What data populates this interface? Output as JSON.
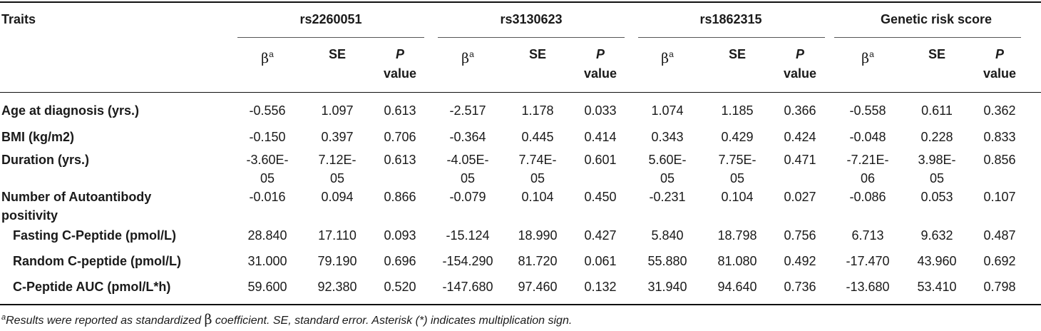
{
  "table": {
    "traits_header": "Traits",
    "groups": [
      "rs2260051",
      "rs3130623",
      "rs1862315",
      "Genetic risk score"
    ],
    "subheaders": {
      "beta": "β",
      "beta_sup": "a",
      "se": "SE",
      "p_line1": "P",
      "p_line2": "value"
    },
    "rows": [
      {
        "trait": "Age at diagnosis (yrs.)",
        "values": [
          [
            "-0.556"
          ],
          [
            "1.097"
          ],
          [
            "0.613"
          ],
          [
            "-2.517"
          ],
          [
            "1.178"
          ],
          [
            "0.033"
          ],
          [
            "1.074"
          ],
          [
            "1.185"
          ],
          [
            "0.366"
          ],
          [
            "-0.558"
          ],
          [
            "0.611"
          ],
          [
            "0.362"
          ]
        ]
      },
      {
        "trait": "BMI (kg/m2)",
        "values": [
          [
            "-0.150"
          ],
          [
            "0.397"
          ],
          [
            "0.706"
          ],
          [
            "-0.364"
          ],
          [
            "0.445"
          ],
          [
            "0.414"
          ],
          [
            "0.343"
          ],
          [
            "0.429"
          ],
          [
            "0.424"
          ],
          [
            "-0.048"
          ],
          [
            "0.228"
          ],
          [
            "0.833"
          ]
        ]
      },
      {
        "trait": "Duration (yrs.)",
        "values": [
          [
            "-3.60E-",
            "05"
          ],
          [
            "7.12E-",
            "05"
          ],
          [
            "0.613"
          ],
          [
            "-4.05E-",
            "05"
          ],
          [
            "7.74E-",
            "05"
          ],
          [
            "0.601"
          ],
          [
            "5.60E-",
            "05"
          ],
          [
            "7.75E-",
            "05"
          ],
          [
            "0.471"
          ],
          [
            "-7.21E-",
            "06"
          ],
          [
            "3.98E-",
            "05"
          ],
          [
            "0.856"
          ]
        ]
      },
      {
        "trait": "Number of Autoantibody",
        "trait_line2": "positivity",
        "values": [
          [
            "-0.016"
          ],
          [
            "0.094"
          ],
          [
            "0.866"
          ],
          [
            "-0.079"
          ],
          [
            "0.104"
          ],
          [
            "0.450"
          ],
          [
            "-0.231"
          ],
          [
            "0.104"
          ],
          [
            "0.027"
          ],
          [
            "-0.086"
          ],
          [
            "0.053"
          ],
          [
            "0.107"
          ]
        ]
      },
      {
        "trait": "Fasting C-Peptide (pmol/L)",
        "indent": true,
        "values": [
          [
            "28.840"
          ],
          [
            "17.110"
          ],
          [
            "0.093"
          ],
          [
            "-15.124"
          ],
          [
            "18.990"
          ],
          [
            "0.427"
          ],
          [
            "5.840"
          ],
          [
            "18.798"
          ],
          [
            "0.756"
          ],
          [
            "6.713"
          ],
          [
            "9.632"
          ],
          [
            "0.487"
          ]
        ]
      },
      {
        "trait": "Random C-peptide (pmol/L)",
        "indent": true,
        "values": [
          [
            "31.000"
          ],
          [
            "79.190"
          ],
          [
            "0.696"
          ],
          [
            "-154.290"
          ],
          [
            "81.720"
          ],
          [
            "0.061"
          ],
          [
            "55.880"
          ],
          [
            "81.080"
          ],
          [
            "0.492"
          ],
          [
            "-17.470"
          ],
          [
            "43.960"
          ],
          [
            "0.692"
          ]
        ]
      },
      {
        "trait": "C-Peptide AUC (pmol/L*h)",
        "indent": true,
        "values": [
          [
            "59.600"
          ],
          [
            "92.380"
          ],
          [
            "0.520"
          ],
          [
            "-147.680"
          ],
          [
            "97.460"
          ],
          [
            "0.132"
          ],
          [
            "31.940"
          ],
          [
            "94.640"
          ],
          [
            "0.736"
          ],
          [
            "-13.680"
          ],
          [
            "53.410"
          ],
          [
            "0.798"
          ]
        ]
      }
    ]
  },
  "footnote": {
    "sup": "a",
    "part1": "Results were reported as standardized ",
    "beta": "β",
    "part2": " coefficient. SE, standard error. Asterisk (*) indicates multiplication sign."
  }
}
